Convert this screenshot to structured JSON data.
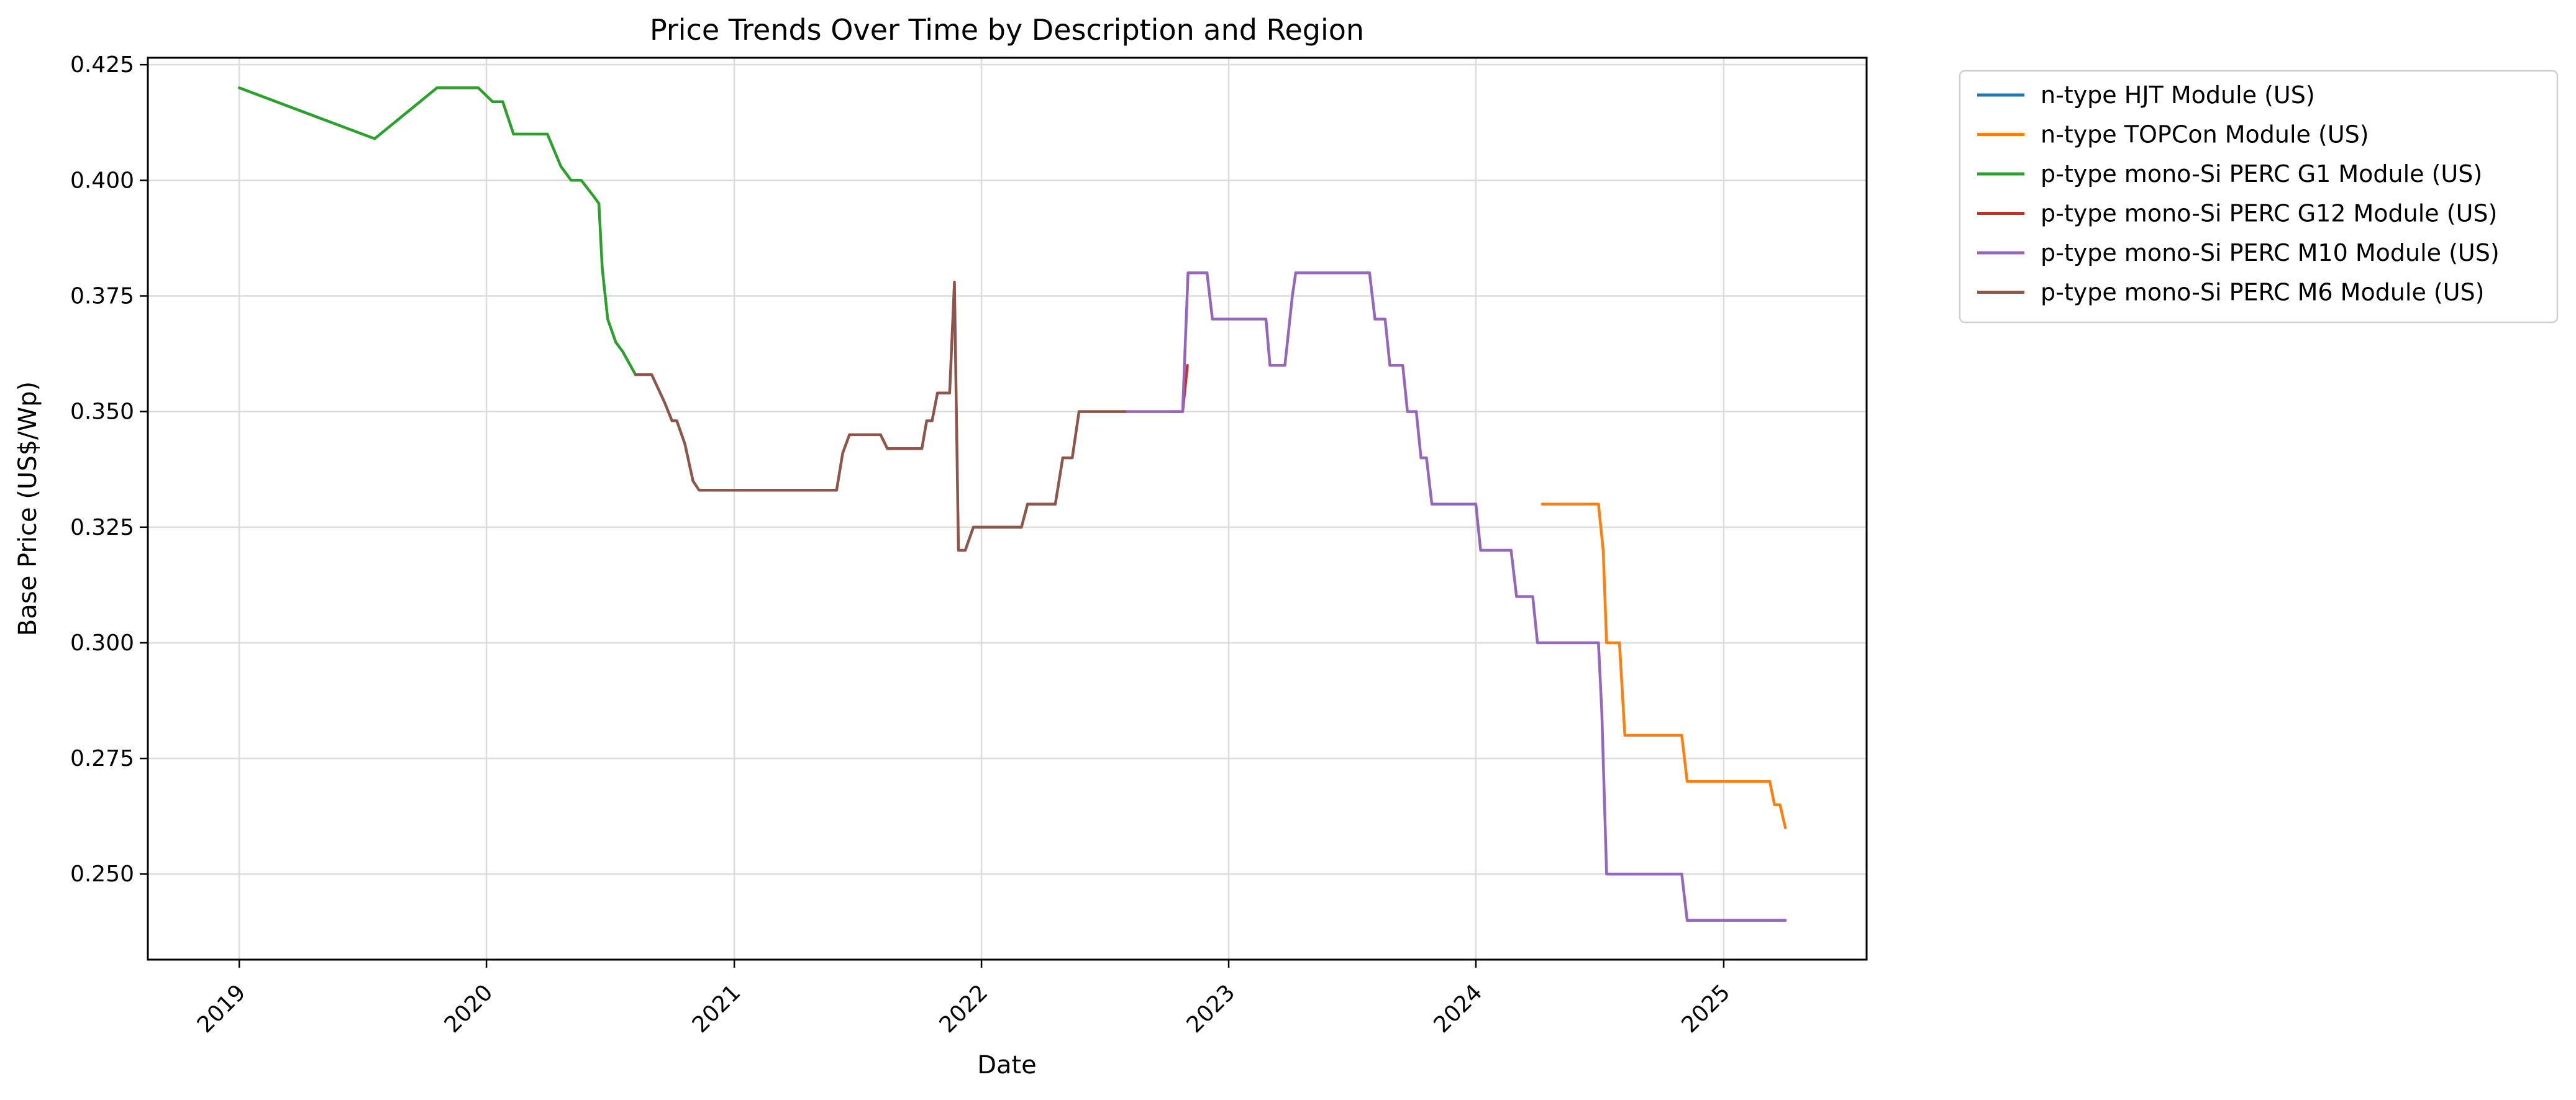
{
  "chart_data": {
    "type": "line",
    "title": "Price Trends Over Time by Description and Region",
    "xlabel": "Date",
    "ylabel": "Base Price (US$/Wp)",
    "xlim": [
      "2018-08-19",
      "2025-07-31"
    ],
    "ylim": [
      0.2315,
      0.4265
    ],
    "x_ticks": [
      "2019",
      "2020",
      "2021",
      "2022",
      "2023",
      "2024",
      "2025"
    ],
    "y_ticks": [
      "0.250",
      "0.275",
      "0.300",
      "0.325",
      "0.350",
      "0.375",
      "0.400",
      "0.425"
    ],
    "grid": true,
    "legend_position": "outside-right",
    "series": [
      {
        "name": "n-type HJT Module (US)",
        "color": "#1f77b4",
        "points": []
      },
      {
        "name": "n-type TOPCon Module (US)",
        "color": "#ff7f0e",
        "points": [
          [
            "2024-04-08",
            0.33
          ],
          [
            "2024-06-30",
            0.33
          ],
          [
            "2024-07-07",
            0.32
          ],
          [
            "2024-07-12",
            0.3
          ],
          [
            "2024-07-31",
            0.3
          ],
          [
            "2024-08-08",
            0.28
          ],
          [
            "2024-10-31",
            0.28
          ],
          [
            "2024-11-08",
            0.27
          ],
          [
            "2025-03-10",
            0.27
          ],
          [
            "2025-03-17",
            0.265
          ],
          [
            "2025-03-25",
            0.265
          ],
          [
            "2025-04-02",
            0.26
          ]
        ]
      },
      {
        "name": "p-type mono-Si PERC G1 Module (US)",
        "color": "#2ca02c",
        "points": [
          [
            "2019-01-01",
            0.42
          ],
          [
            "2019-07-20",
            0.409
          ],
          [
            "2019-10-20",
            0.42
          ],
          [
            "2019-12-20",
            0.42
          ],
          [
            "2020-01-10",
            0.417
          ],
          [
            "2020-01-25",
            0.417
          ],
          [
            "2020-02-10",
            0.41
          ],
          [
            "2020-03-31",
            0.41
          ],
          [
            "2020-04-20",
            0.403
          ],
          [
            "2020-05-05",
            0.4
          ],
          [
            "2020-05-20",
            0.4
          ],
          [
            "2020-06-05",
            0.397
          ],
          [
            "2020-06-15",
            0.395
          ],
          [
            "2020-06-20",
            0.381
          ],
          [
            "2020-06-28",
            0.37
          ],
          [
            "2020-07-10",
            0.365
          ],
          [
            "2020-07-20",
            0.363
          ],
          [
            "2020-08-08",
            0.358
          ]
        ]
      },
      {
        "name": "p-type mono-Si PERC G12 Module (US)",
        "color": "#d62728",
        "points": [
          [
            "2022-10-10",
            0.35
          ],
          [
            "2022-10-25",
            0.35
          ],
          [
            "2022-11-01",
            0.36
          ]
        ]
      },
      {
        "name": "p-type mono-Si PERC M10 Module (US)",
        "color": "#9467bd",
        "points": [
          [
            "2022-08-01",
            0.35
          ],
          [
            "2022-10-25",
            0.35
          ],
          [
            "2022-10-29",
            0.365
          ],
          [
            "2022-11-02",
            0.38
          ],
          [
            "2022-11-30",
            0.38
          ],
          [
            "2022-12-08",
            0.37
          ],
          [
            "2023-02-25",
            0.37
          ],
          [
            "2023-03-03",
            0.36
          ],
          [
            "2023-03-25",
            0.36
          ],
          [
            "2023-04-05",
            0.375
          ],
          [
            "2023-04-10",
            0.38
          ],
          [
            "2023-07-28",
            0.38
          ],
          [
            "2023-08-05",
            0.37
          ],
          [
            "2023-08-20",
            0.37
          ],
          [
            "2023-08-27",
            0.36
          ],
          [
            "2023-09-15",
            0.36
          ],
          [
            "2023-09-22",
            0.35
          ],
          [
            "2023-10-05",
            0.35
          ],
          [
            "2023-10-12",
            0.34
          ],
          [
            "2023-10-20",
            0.34
          ],
          [
            "2023-10-28",
            0.33
          ],
          [
            "2024-01-01",
            0.33
          ],
          [
            "2024-01-08",
            0.32
          ],
          [
            "2024-02-22",
            0.32
          ],
          [
            "2024-03-01",
            0.31
          ],
          [
            "2024-03-25",
            0.31
          ],
          [
            "2024-04-01",
            0.3
          ],
          [
            "2024-06-30",
            0.3
          ],
          [
            "2024-07-05",
            0.285
          ],
          [
            "2024-07-12",
            0.25
          ],
          [
            "2024-10-31",
            0.25
          ],
          [
            "2024-11-08",
            0.24
          ],
          [
            "2025-04-02",
            0.24
          ]
        ]
      },
      {
        "name": "p-type mono-Si PERC M6 Module (US)",
        "color": "#8c564b",
        "points": [
          [
            "2020-08-08",
            0.358
          ],
          [
            "2020-09-01",
            0.358
          ],
          [
            "2020-09-20",
            0.352
          ],
          [
            "2020-10-01",
            0.348
          ],
          [
            "2020-10-08",
            0.348
          ],
          [
            "2020-10-20",
            0.343
          ],
          [
            "2020-11-01",
            0.335
          ],
          [
            "2020-11-10",
            0.333
          ],
          [
            "2021-06-01",
            0.333
          ],
          [
            "2021-06-10",
            0.341
          ],
          [
            "2021-06-20",
            0.345
          ],
          [
            "2021-08-05",
            0.345
          ],
          [
            "2021-08-15",
            0.342
          ],
          [
            "2021-10-05",
            0.342
          ],
          [
            "2021-10-12",
            0.348
          ],
          [
            "2021-10-20",
            0.348
          ],
          [
            "2021-10-28",
            0.354
          ],
          [
            "2021-11-15",
            0.354
          ],
          [
            "2021-11-22",
            0.378
          ],
          [
            "2021-11-28",
            0.32
          ],
          [
            "2021-12-08",
            0.32
          ],
          [
            "2021-12-20",
            0.325
          ],
          [
            "2022-03-01",
            0.325
          ],
          [
            "2022-03-10",
            0.33
          ],
          [
            "2022-04-20",
            0.33
          ],
          [
            "2022-05-01",
            0.34
          ],
          [
            "2022-05-15",
            0.34
          ],
          [
            "2022-05-25",
            0.35
          ],
          [
            "2022-08-01",
            0.35
          ]
        ]
      }
    ]
  }
}
